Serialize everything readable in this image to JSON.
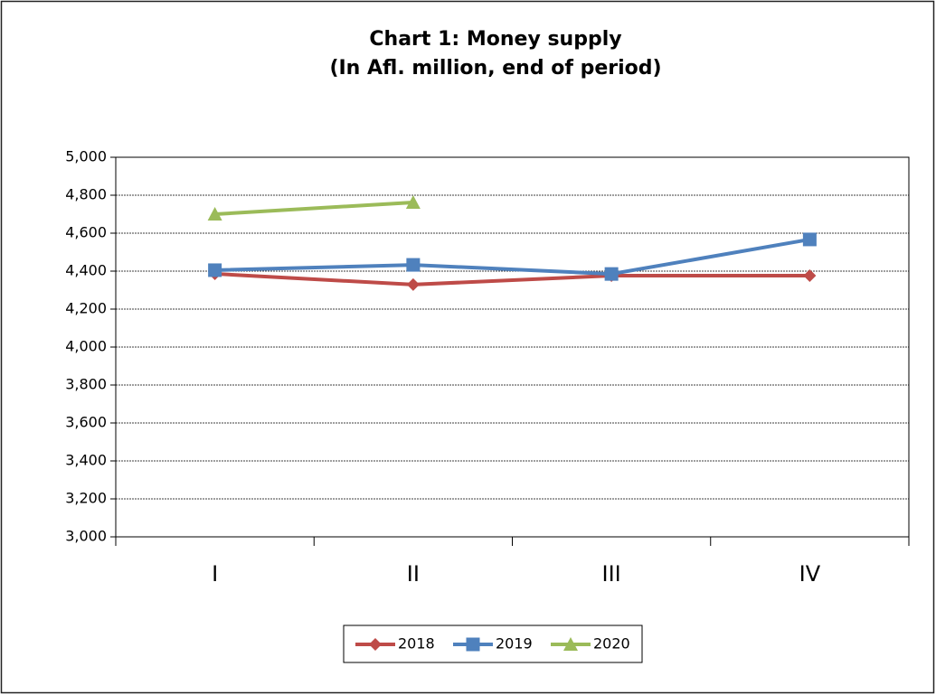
{
  "chart_data": {
    "type": "line",
    "title": "Chart 1: Money supply",
    "subtitle": "(In Afl. million, end of period)",
    "categories": [
      "I",
      "II",
      "III",
      "IV"
    ],
    "series": [
      {
        "name": "2018",
        "color": "#be4b48",
        "marker": "diamond",
        "values": [
          4386,
          4329,
          4376,
          4376
        ]
      },
      {
        "name": "2019",
        "color": "#4f81bd",
        "marker": "square",
        "values": [
          4405,
          4433,
          4385,
          4567
        ]
      },
      {
        "name": "2020",
        "color": "#9bbb59",
        "marker": "triangle",
        "values": [
          4700,
          4762,
          null,
          null
        ]
      }
    ],
    "ylim": [
      3000,
      5000
    ],
    "yticks": [
      {
        "value": 3000,
        "label": "3,000"
      },
      {
        "value": 3200,
        "label": "3,200"
      },
      {
        "value": 3400,
        "label": "3,400"
      },
      {
        "value": 3600,
        "label": "3,600"
      },
      {
        "value": 3800,
        "label": "3,800"
      },
      {
        "value": 4000,
        "label": "4,000"
      },
      {
        "value": 4200,
        "label": "4,200"
      },
      {
        "value": 4400,
        "label": "4,400"
      },
      {
        "value": 4600,
        "label": "4,600"
      },
      {
        "value": 4800,
        "label": "4,800"
      },
      {
        "value": 5000,
        "label": "5,000"
      }
    ],
    "grid": true,
    "legend": "bottom"
  }
}
